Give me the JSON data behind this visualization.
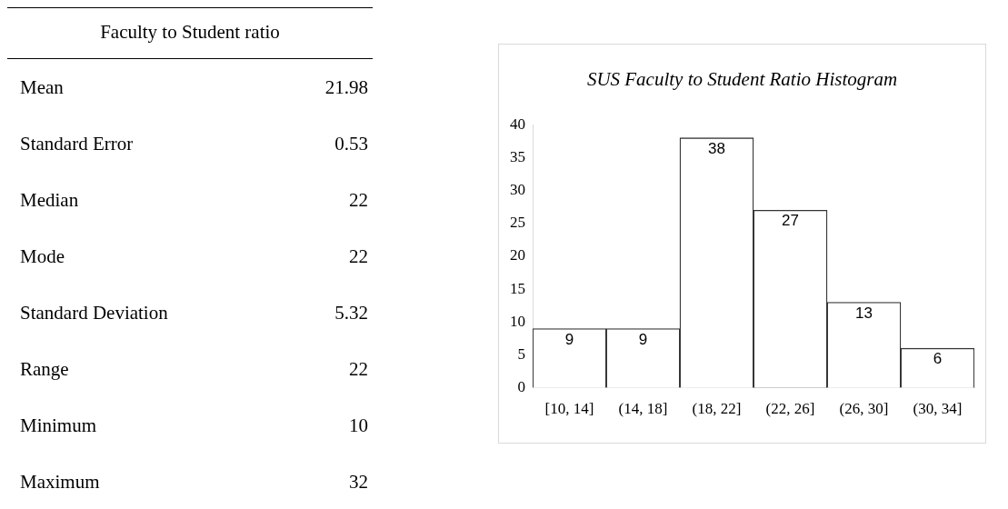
{
  "chart_data": [
    {
      "type": "other",
      "title": "Faculty to Student ratio",
      "annotations": [
        "Mean",
        "21.98",
        "Standard Error",
        "0.53",
        "Median",
        "22",
        "Mode",
        "22",
        "Standard Deviation",
        "5.32",
        "Range",
        "22",
        "Minimum",
        "10",
        "Maximum",
        "32"
      ]
    },
    {
      "type": "bar",
      "title": "SUS Faculty to Student Ratio Histogram",
      "categories": [
        "[10, 14]",
        "(14, 18]",
        "(18, 22]",
        "(22, 26]",
        "(26, 30]",
        "(30, 34]"
      ],
      "values": [
        9,
        9,
        38,
        27,
        13,
        6
      ],
      "color": "#ffffff",
      "ylim": [
        0,
        40
      ],
      "yticks": [
        0,
        5,
        10,
        15,
        20,
        25,
        30,
        35,
        40
      ],
      "grid": false,
      "data_labels": true
    }
  ]
}
